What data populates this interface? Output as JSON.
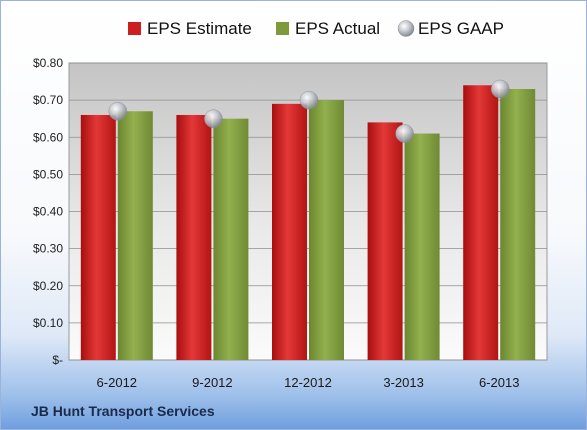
{
  "chart_data": {
    "type": "bar",
    "categories": [
      "6-2012",
      "9-2012",
      "12-2012",
      "3-2013",
      "6-2013"
    ],
    "series": [
      {
        "name": "EPS Estimate",
        "values": [
          0.66,
          0.66,
          0.69,
          0.64,
          0.74
        ],
        "color": "#cc1f1f"
      },
      {
        "name": "EPS Actual",
        "values": [
          0.67,
          0.65,
          0.7,
          0.61,
          0.73
        ],
        "color": "#7d9a3c"
      },
      {
        "name": "EPS GAAP",
        "values": [
          0.67,
          0.65,
          0.7,
          0.61,
          0.73
        ],
        "color": "#b8bcc4",
        "marker": "sphere"
      }
    ],
    "ylim": [
      0,
      0.8
    ],
    "yticks": [
      0,
      0.1,
      0.2,
      0.3,
      0.4,
      0.5,
      0.6,
      0.7,
      0.8
    ],
    "ytick_labels": [
      "$-",
      "$0.10",
      "$0.20",
      "$0.30",
      "$0.40",
      "$0.50",
      "$0.60",
      "$0.70",
      "$0.80"
    ],
    "grid": true,
    "legend_position": "top"
  },
  "footer": {
    "company": "JB Hunt Transport Services"
  }
}
